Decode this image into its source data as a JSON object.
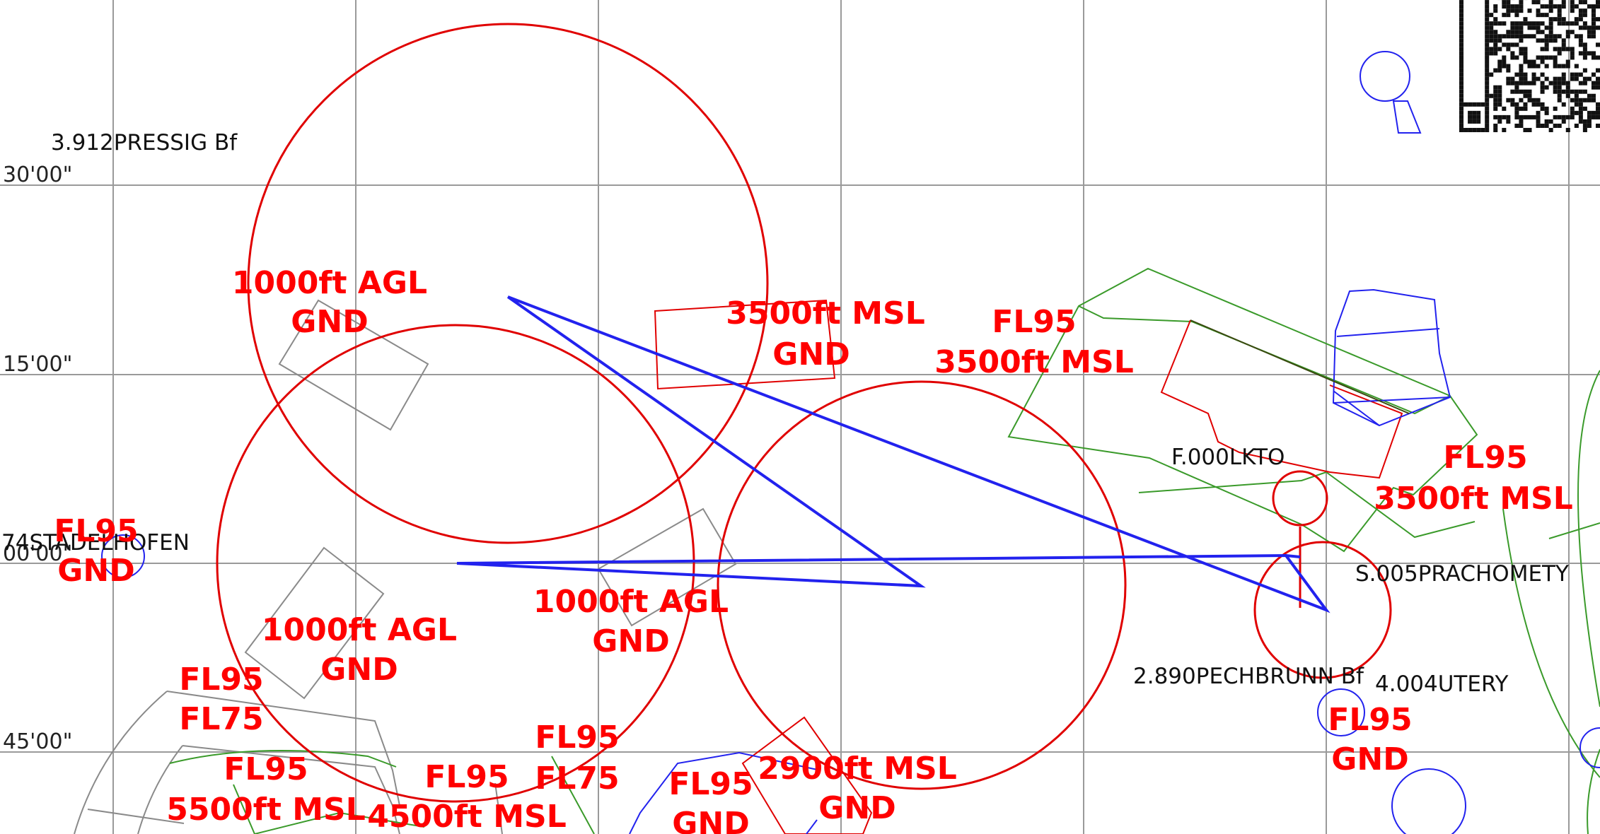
{
  "map": {
    "colors": {
      "grid": "#9a9a9a",
      "restricted": "#e00000",
      "route": "#2222ee",
      "ctr": "#3a9a2a",
      "misc": "#8a8a8a",
      "alt_label": "#ff0000"
    },
    "lat_labels": [
      "30'00\"",
      "15'00\"",
      "00'00\"",
      "45'00\""
    ],
    "waypoints": {
      "pressig": "3.912PRESSIG Bf",
      "stadelhofen": "74STADELHOFEN",
      "lkto": "F.000LKTO",
      "prachomety": "S.005PRACHOMETY",
      "pechbrunn": "2.890PECHBRUNN Bf",
      "utery": "4.004UTERY"
    },
    "altitude_labels": [
      {
        "top": "1000ft AGL",
        "bottom": "GND"
      },
      {
        "top": "3500ft MSL",
        "bottom": "GND"
      },
      {
        "top": "FL95",
        "bottom": "3500ft MSL"
      },
      {
        "top": "FL95",
        "bottom": "3500ft MSL"
      },
      {
        "top": "FL95",
        "bottom": "GND"
      },
      {
        "top": "1000ft AGL",
        "bottom": "GND"
      },
      {
        "top": "1000ft AGL",
        "bottom": "GND"
      },
      {
        "top": "FL95",
        "bottom": "FL75"
      },
      {
        "top": "FL95",
        "bottom": "FL75"
      },
      {
        "top": "FL95",
        "bottom": "GND"
      },
      {
        "top": "FL95",
        "bottom": "5500ft MSL"
      },
      {
        "top": "FL95",
        "bottom": "4500ft MSL"
      },
      {
        "top": "FL95",
        "bottom": "GND"
      },
      {
        "top": "2900ft MSL",
        "bottom": "GND"
      }
    ]
  }
}
